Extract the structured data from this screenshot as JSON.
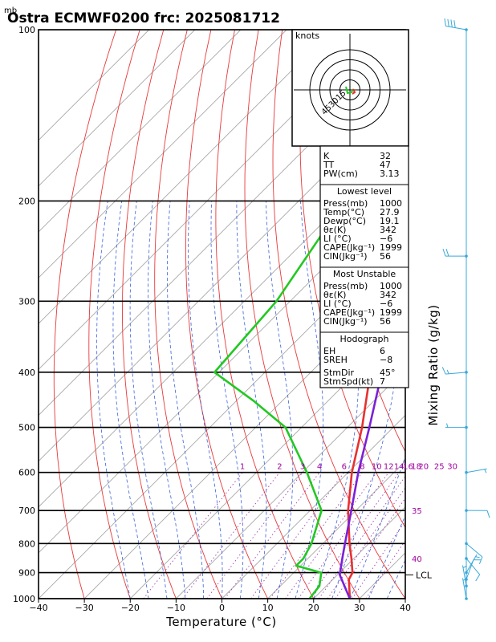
{
  "chart_data": {
    "type": "skew-t",
    "title": "Ostra ECMWF0200 frc: 2025081712",
    "pressure_unit_label": "mb",
    "xlabel": "Temperature (°C)",
    "ylabel_right": "Mixing Ratio (g/kg)",
    "xlim": [
      -40,
      40
    ],
    "ylim_mb": [
      1000,
      100
    ],
    "x_ticks": [
      "−40",
      "−30",
      "−20",
      "−10",
      "0",
      "10",
      "20",
      "30",
      "40"
    ],
    "x_tick_values": [
      -40,
      -30,
      -20,
      -10,
      0,
      10,
      20,
      30,
      40
    ],
    "pressure_levels": [
      100,
      200,
      300,
      400,
      500,
      600,
      700,
      800,
      900,
      1000
    ],
    "pressure_labels": [
      "100",
      "200",
      "300",
      "400",
      "500",
      "600",
      "700",
      "800",
      "900",
      "1000"
    ],
    "mixing_ratio_labels": [
      "1",
      "2",
      "3",
      "4",
      "6",
      "8",
      "10",
      "12",
      "14",
      "16",
      "18",
      "20",
      "25",
      "30"
    ],
    "mixing_ratio_values": [
      1,
      2,
      3,
      4,
      6,
      8,
      10,
      12,
      14,
      16,
      18,
      20,
      25,
      30
    ],
    "edge_labels": [
      {
        "text": "35",
        "p": 700
      },
      {
        "text": "40",
        "p": 850
      }
    ],
    "lcl_label": "LCL",
    "lcl_pressure": 908,
    "series": [
      {
        "name": "Temperature",
        "color": "#e83030",
        "points": [
          [
            1000,
            27.9
          ],
          [
            950,
            25.0
          ],
          [
            925,
            23.5
          ],
          [
            900,
            22.8
          ],
          [
            850,
            19.5
          ],
          [
            800,
            15.8
          ],
          [
            700,
            8.3
          ],
          [
            600,
            0.8
          ],
          [
            500,
            -6.8
          ],
          [
            400,
            -17.0
          ],
          [
            300,
            -31.0
          ],
          [
            250,
            -41.0
          ],
          [
            200,
            -45.0
          ],
          [
            150,
            -50.0
          ],
          [
            100,
            -56.0
          ]
        ]
      },
      {
        "name": "Parcel",
        "color": "#7a20d8",
        "points": [
          [
            1000,
            27.9
          ],
          [
            908,
            20.5
          ],
          [
            850,
            17.5
          ],
          [
            800,
            14.8
          ],
          [
            700,
            9.0
          ],
          [
            600,
            2.2
          ],
          [
            500,
            -5.2
          ],
          [
            400,
            -14.5
          ],
          [
            300,
            -26.0
          ],
          [
            250,
            -34.0
          ],
          [
            200,
            -44.5
          ],
          [
            150,
            -57.0
          ],
          [
            100,
            -74.0
          ]
        ]
      },
      {
        "name": "Dewpoint",
        "color": "#22c822",
        "points": [
          [
            1000,
            19.1
          ],
          [
            950,
            18.5
          ],
          [
            900,
            16.0
          ],
          [
            875,
            9.0
          ],
          [
            850,
            9.0
          ],
          [
            800,
            7.5
          ],
          [
            700,
            2.5
          ],
          [
            600,
            -9.0
          ],
          [
            500,
            -23.5
          ],
          [
            450,
            -36.0
          ],
          [
            400,
            -51.0
          ],
          [
            300,
            -53.0
          ],
          [
            200,
            -60.0
          ],
          [
            100,
            -67.0
          ]
        ]
      }
    ],
    "wind_barbs": [
      {
        "p": 100,
        "dir": 280,
        "spd": 40
      },
      {
        "p": 250,
        "dir": 270,
        "spd": 20
      },
      {
        "p": 400,
        "dir": 265,
        "spd": 15
      },
      {
        "p": 500,
        "dir": 270,
        "spd": 5
      },
      {
        "p": 600,
        "dir": 80,
        "spd": 5
      },
      {
        "p": 700,
        "dir": 90,
        "spd": 10
      },
      {
        "p": 800,
        "dir": 130,
        "spd": 10
      },
      {
        "p": 850,
        "dir": 140,
        "spd": 10
      },
      {
        "p": 900,
        "dir": 30,
        "spd": 5
      },
      {
        "p": 925,
        "dir": 20,
        "spd": 10
      },
      {
        "p": 950,
        "dir": 350,
        "spd": 5
      },
      {
        "p": 1000,
        "dir": 350,
        "spd": 5
      }
    ],
    "hodograph": {
      "unit_label": "knots",
      "ring_labels": [
        "15",
        "30",
        "45"
      ],
      "ring_values": [
        15,
        30,
        45
      ]
    }
  },
  "indices": {
    "block1": [
      {
        "label": "K",
        "value": "32"
      },
      {
        "label": "TT",
        "value": "47"
      },
      {
        "label": "PW(cm)",
        "value": "3.13"
      }
    ],
    "lowest": {
      "header": "Lowest level",
      "rows": [
        {
          "label": "Press(mb)",
          "value": "1000"
        },
        {
          "label": "Temp(°C)",
          "value": "27.9"
        },
        {
          "label": "Dewp(°C)",
          "value": "19.1"
        },
        {
          "label": "θε(K)",
          "value": "342"
        },
        {
          "label": "LI (°C)",
          "value": "−6"
        },
        {
          "label": "CAPE(Jkg⁻¹)",
          "value": "1999"
        },
        {
          "label": "CIN(Jkg⁻¹)",
          "value": "56"
        }
      ]
    },
    "most_unstable": {
      "header": "Most Unstable",
      "rows": [
        {
          "label": "Press(mb)",
          "value": "1000"
        },
        {
          "label": "θε(K)",
          "value": "342"
        },
        {
          "label": "LI (°C)",
          "value": "−6"
        },
        {
          "label": "CAPE(Jkg⁻¹)",
          "value": "1999"
        },
        {
          "label": "CIN(Jkg⁻¹)",
          "value": "56"
        }
      ]
    },
    "hodo_block": {
      "header": "Hodograph",
      "rows": [
        {
          "label": "EH",
          "value": "6"
        },
        {
          "label": "SREH",
          "value": "−8"
        },
        {
          "label": "StmDir",
          "value": "45°"
        },
        {
          "label": "StmSpd(kt)",
          "value": "7"
        }
      ]
    }
  }
}
